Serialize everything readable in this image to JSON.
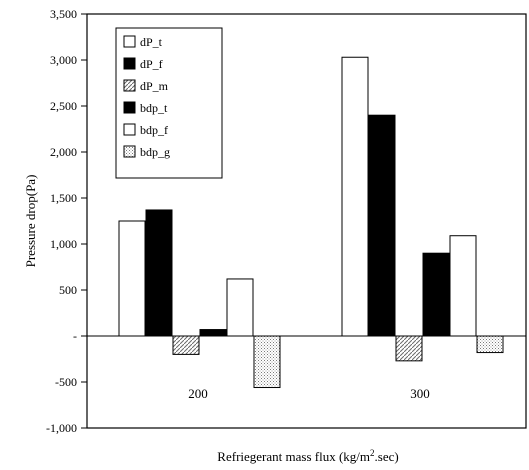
{
  "chart_data": {
    "type": "bar",
    "title": "",
    "xlabel": "Refriegerant mass flux (kg/m",
    "xlabel_sup": "2",
    "xlabel_tail": ".sec)",
    "ylabel": "Pressure drop(Pa)",
    "ylim": [
      -1000,
      3500
    ],
    "yticks": [
      -1000,
      -500,
      0,
      500,
      1000,
      1500,
      2000,
      2500,
      3000,
      3500
    ],
    "ytick_labels": [
      "-1,000",
      "-500",
      "-",
      "500",
      "1,000",
      "1,500",
      "2,000",
      "2,500",
      "3,000",
      "3,500"
    ],
    "grid": false,
    "legend": "top-left",
    "categories": [
      "200",
      "300"
    ],
    "series": [
      {
        "name": "dP_t",
        "values": [
          1250,
          3030
        ],
        "fill": "#ffffff"
      },
      {
        "name": "dP_f",
        "values": [
          1370,
          2400
        ],
        "fill": "#000000"
      },
      {
        "name": "dP_m",
        "values": [
          -200,
          -270
        ],
        "fill": "hatch"
      },
      {
        "name": "bdp_t",
        "values": [
          70,
          900
        ],
        "fill": "#000000"
      },
      {
        "name": "bdp_f",
        "values": [
          620,
          1090
        ],
        "fill": "#ffffff"
      },
      {
        "name": "bdp_g",
        "values": [
          -560,
          -180
        ],
        "fill": "dots"
      }
    ]
  }
}
